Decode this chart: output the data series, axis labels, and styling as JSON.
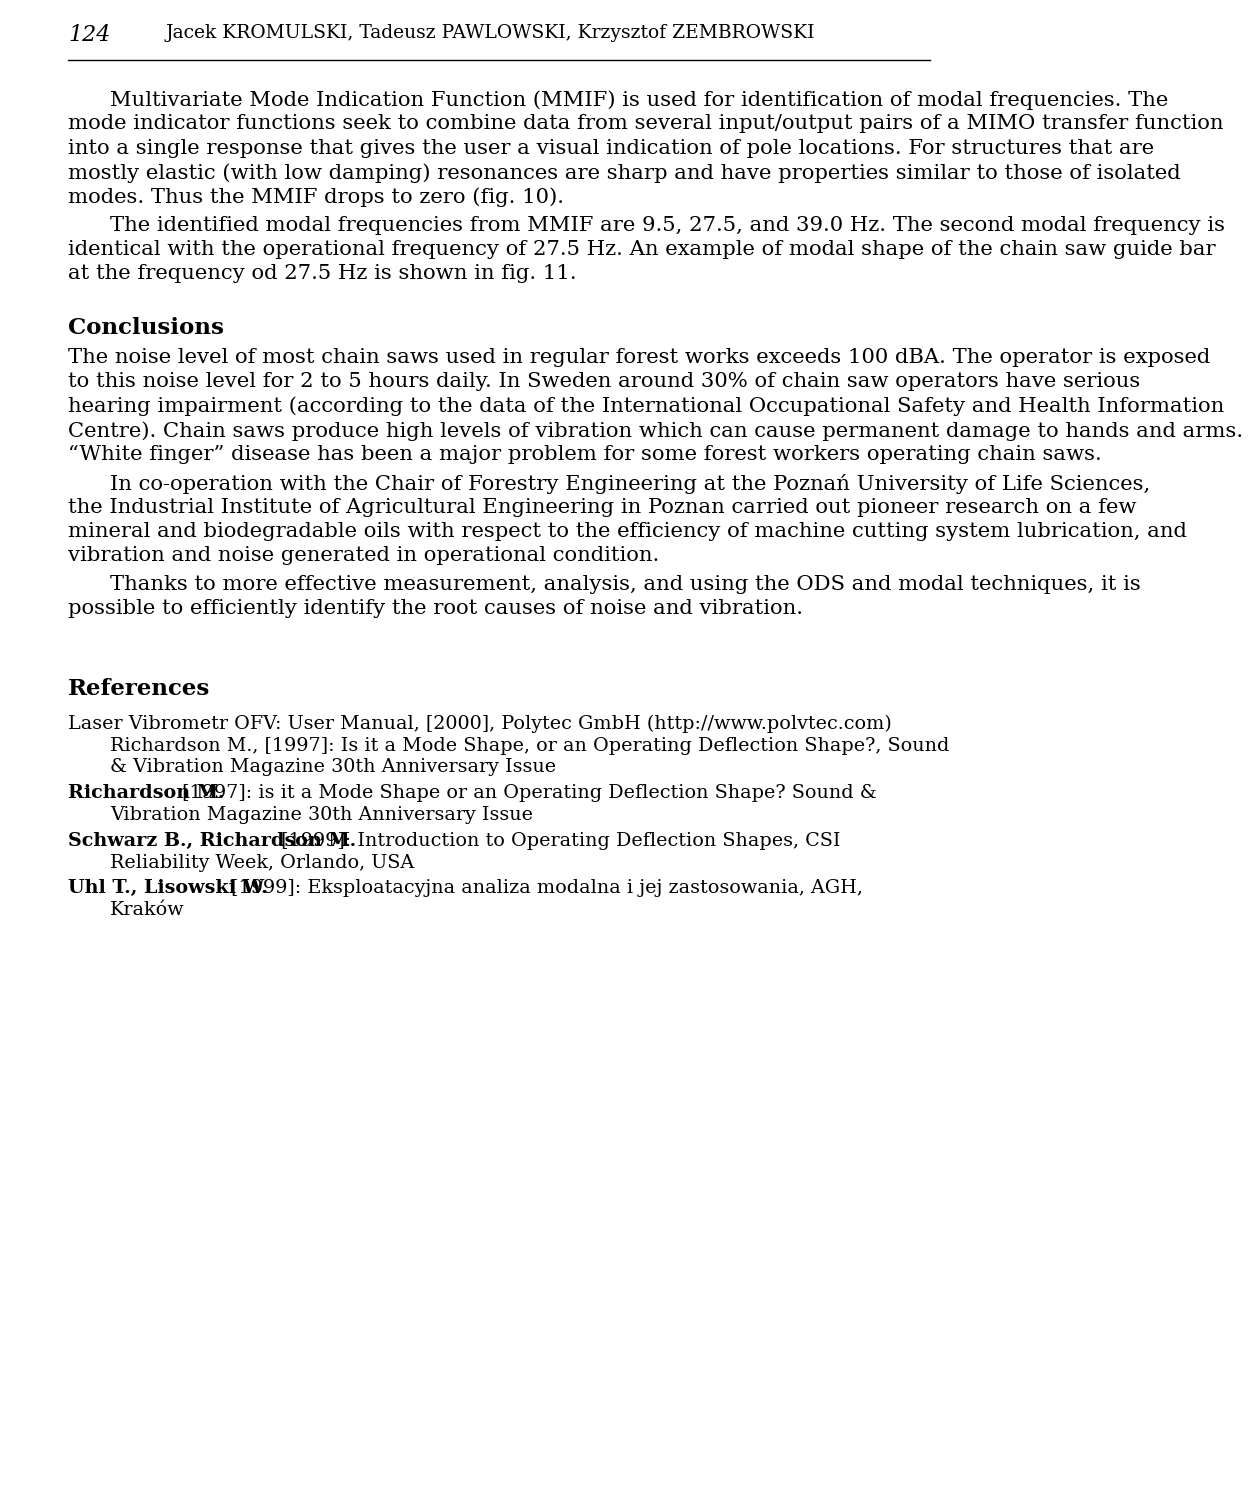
{
  "page_number": "124",
  "bg_color": "#ffffff",
  "text_color": "#000000",
  "header_line": "Jacek Kromulski, Tadeusz Pawlowski, Krzysztof Zembrowski",
  "body_para1": "Multivariate Mode Indication Function (MMIF) is used for identification of modal frequencies. The mode indicator functions seek to combine data from several input/output pairs of a MIMO transfer function into a single response that gives the user a visual indication of pole locations. For structures that are mostly elastic (with low damping) resonances are sharp and have properties similar to those of isolated modes. Thus the MMIF drops to zero (fig. 10).",
  "body_para2": "The identified modal frequencies from MMIF are 9.5, 27.5, and 39.0 Hz. The second modal frequency is identical with the operational frequency of 27.5 Hz. An example of modal shape of the chain saw guide bar at the frequency od 27.5 Hz is shown in fig. 11.",
  "conclusions_heading": "Conclusions",
  "conclusions_para1": "The noise level of most chain saws used in regular forest works exceeds 100 dBA. The operator is exposed to this noise level for 2 to 5 hours daily. In Sweden around 30% of chain saw operators have serious hearing impairment (according to the data of the International Occupational Safety and Health Information Centre). Chain saws produce high levels of vibration which can cause permanent damage to hands and arms. “White finger” disease has been a major problem for some forest workers operating chain saws.",
  "conclusions_para2": "In co-operation with the Chair of Forestry Engineering at the Poznań University of Life Sciences, the Industrial Institute of Agricultural Engineering in Poznan carried out pioneer research on a few mineral and biodegradable oils with respect to the efficiency of machine cutting system lubrication, and vibration and noise generated in operational condition.",
  "conclusions_para3": "Thanks to more effective measurement, analysis, and using the ODS and modal techniques, it is possible to efficiently identify the root causes of noise and vibration.",
  "references_heading": "References",
  "ref1_normal": "Laser Vibrometr OFV: User Manual, [2000], Polytec GmbH (http://www.polvtec.com)",
  "ref1_cont1": "Richardson M., [1997]: Is it a Mode Shape, or an Operating Deflection Shape?, Sound",
  "ref1_cont2": "& Vibration Magazine 30th Anniversary Issue",
  "ref2_bold": "Richardson M.",
  "ref2_normal": " [1997]: is it a Mode Shape or an Operating Deflection Shape? Sound &",
  "ref2_cont1": "Vibration Magazine 30th Anniversary Issue",
  "ref3_bold": "Schwarz B., Richardson M.",
  "ref3_normal": " [1999]: Introduction to Operating Deflection Shapes, CSI",
  "ref3_cont1": "Reliability Week, Orlando, USA",
  "ref4_bold": "Uhl T., Lisowski W.",
  "ref4_normal": " [1999]: Eksploatacyjna analiza modalna i jej zastosowania, AGH,",
  "ref4_cont1": "Kraków"
}
